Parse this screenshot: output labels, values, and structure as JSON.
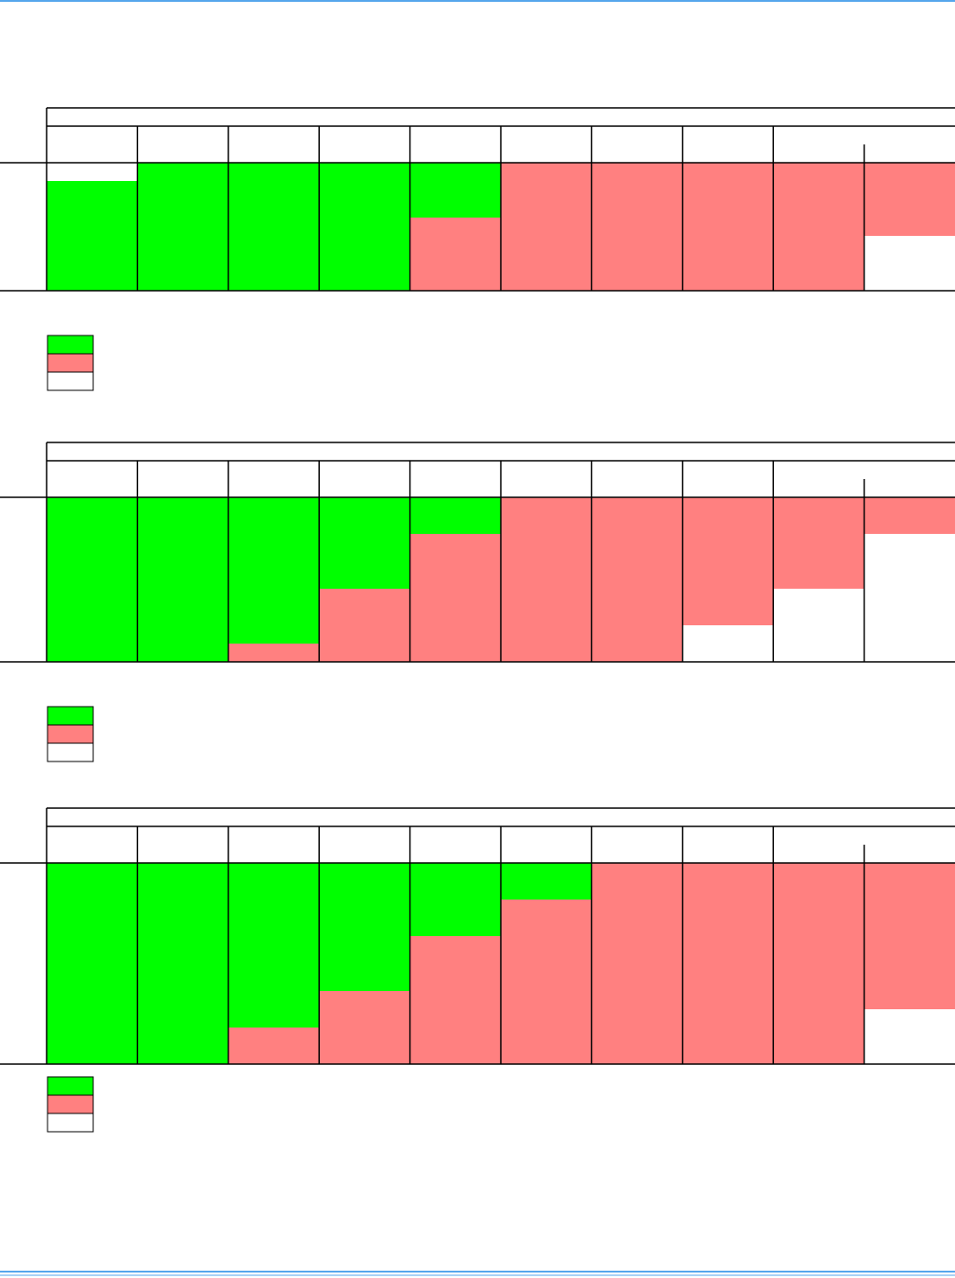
{
  "legend_colors": [
    "#00ff00",
    "#ff8080",
    "#ffffff"
  ],
  "tables": [
    {
      "columns": [
        [
          {
            "color": "#ffffff",
            "value": 1
          },
          {
            "color": "#00ff00",
            "value": 6
          }
        ],
        [
          {
            "color": "#00ff00",
            "value": 7
          }
        ],
        [
          {
            "color": "#00ff00",
            "value": 7
          }
        ],
        [
          {
            "color": "#00ff00",
            "value": 7
          }
        ],
        [
          {
            "color": "#00ff00",
            "value": 3
          },
          {
            "color": "#ff8080",
            "value": 4
          }
        ],
        [
          {
            "color": "#ff8080",
            "value": 7
          }
        ],
        [
          {
            "color": "#ff8080",
            "value": 7
          }
        ],
        [
          {
            "color": "#ff8080",
            "value": 7
          }
        ],
        [
          {
            "color": "#ff8080",
            "value": 7
          }
        ],
        [
          {
            "color": "#ff8080",
            "value": 4
          },
          {
            "color": "#ffffff",
            "value": 3
          }
        ]
      ]
    },
    {
      "columns": [
        [
          {
            "color": "#00ff00",
            "value": 9
          }
        ],
        [
          {
            "color": "#00ff00",
            "value": 9
          }
        ],
        [
          {
            "color": "#00ff00",
            "value": 8
          },
          {
            "color": "#ff8080",
            "value": 1
          }
        ],
        [
          {
            "color": "#00ff00",
            "value": 5
          },
          {
            "color": "#ff8080",
            "value": 4
          }
        ],
        [
          {
            "color": "#00ff00",
            "value": 2
          },
          {
            "color": "#ff8080",
            "value": 7
          }
        ],
        [
          {
            "color": "#ff8080",
            "value": 9
          }
        ],
        [
          {
            "color": "#ff8080",
            "value": 9
          }
        ],
        [
          {
            "color": "#ff8080",
            "value": 7
          },
          {
            "color": "#ffffff",
            "value": 2
          }
        ],
        [
          {
            "color": "#ff8080",
            "value": 5
          },
          {
            "color": "#ffffff",
            "value": 4
          }
        ],
        [
          {
            "color": "#ff8080",
            "value": 2
          },
          {
            "color": "#ffffff",
            "value": 7
          }
        ]
      ]
    },
    {
      "columns": [
        [
          {
            "color": "#00ff00",
            "value": 11
          }
        ],
        [
          {
            "color": "#00ff00",
            "value": 11
          }
        ],
        [
          {
            "color": "#00ff00",
            "value": 9
          },
          {
            "color": "#ff8080",
            "value": 2
          }
        ],
        [
          {
            "color": "#00ff00",
            "value": 7
          },
          {
            "color": "#ff8080",
            "value": 4
          }
        ],
        [
          {
            "color": "#00ff00",
            "value": 4
          },
          {
            "color": "#ff8080",
            "value": 7
          }
        ],
        [
          {
            "color": "#00ff00",
            "value": 2
          },
          {
            "color": "#ff8080",
            "value": 9
          }
        ],
        [
          {
            "color": "#ff8080",
            "value": 11
          }
        ],
        [
          {
            "color": "#ff8080",
            "value": 11
          }
        ],
        [
          {
            "color": "#ff8080",
            "value": 11
          }
        ],
        [
          {
            "color": "#ff8080",
            "value": 8
          },
          {
            "color": "#ffffff",
            "value": 3
          }
        ]
      ]
    }
  ]
}
